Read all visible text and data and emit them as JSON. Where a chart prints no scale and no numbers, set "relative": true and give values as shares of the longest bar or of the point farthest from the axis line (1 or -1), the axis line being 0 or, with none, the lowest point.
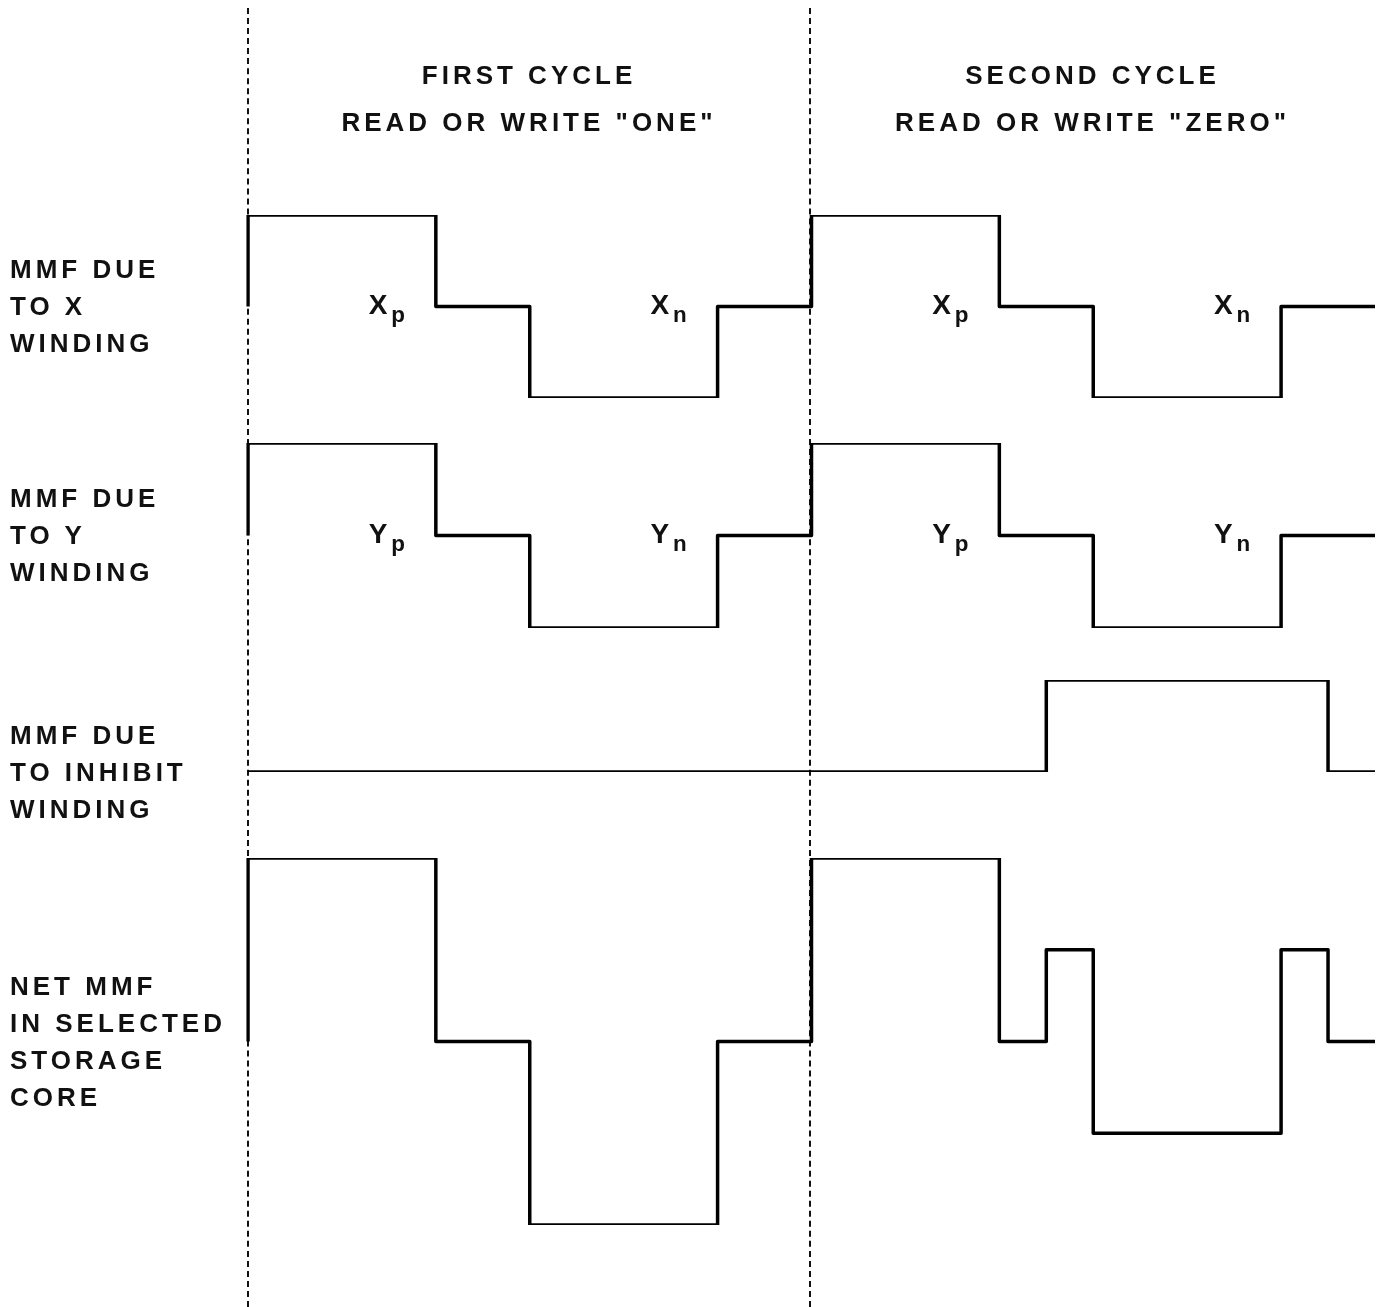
{
  "chart_data": [
    {
      "type": "step",
      "relative": true,
      "ylabel": "MMF DUE\nTO X\nWINDING",
      "categories": [
        null,
        null,
        null,
        null,
        null,
        null,
        null,
        null,
        null,
        null,
        null,
        null,
        null,
        null,
        null,
        null,
        null,
        null,
        null,
        null,
        null,
        null,
        null,
        null,
        null
      ],
      "tick_labels": false,
      "marker": "none",
      "series": [
        {
          "color": "#000000",
          "values": [
            0.5,
            1,
            1,
            1,
            1,
            0.5,
            0.5,
            0,
            0,
            0,
            0,
            0.5,
            0.5,
            1,
            1,
            1,
            1,
            0.5,
            0.5,
            0,
            0,
            0,
            0,
            0.5,
            0.5
          ]
        }
      ],
      "annotations": [
        "FIRST CYCLE\nREAD OR WRITE \"ONE\"",
        "SECOND CYCLE\nREAD OR WRITE \"ZERO\"",
        "X$_{p}$",
        "X$_{n}$",
        "X$_{p}$",
        "X$_{n}$"
      ]
    },
    {
      "type": "step",
      "relative": true,
      "ylabel": "MMF DUE\nTO Y\nWINDING",
      "categories": [
        null,
        null,
        null,
        null,
        null,
        null,
        null,
        null,
        null,
        null,
        null,
        null,
        null,
        null,
        null,
        null,
        null,
        null,
        null,
        null,
        null,
        null,
        null,
        null,
        null
      ],
      "tick_labels": false,
      "marker": "none",
      "series": [
        {
          "color": "#000000",
          "values": [
            0.5,
            1,
            1,
            1,
            1,
            0.5,
            0.5,
            0,
            0,
            0,
            0,
            0.5,
            0.5,
            1,
            1,
            1,
            1,
            0.5,
            0.5,
            0,
            0,
            0,
            0,
            0.5,
            0.5
          ]
        }
      ],
      "annotations": [
        "Y$_{p}$",
        "Y$_{n}$",
        "Y$_{p}$",
        "Y$_{n}$"
      ]
    },
    {
      "type": "step",
      "relative": true,
      "ylabel": "MMF DUE\nTO INHIBIT\nWINDING",
      "categories": [
        null,
        null,
        null,
        null,
        null,
        null,
        null,
        null,
        null,
        null,
        null,
        null,
        null,
        null,
        null,
        null,
        null,
        null,
        null,
        null,
        null,
        null,
        null,
        null,
        null
      ],
      "tick_labels": false,
      "marker": "none",
      "series": [
        {
          "color": "#000000",
          "values": [
            0,
            0,
            0,
            0,
            0,
            0,
            0,
            0,
            0,
            0,
            0,
            0,
            0,
            0,
            0,
            0,
            0,
            0,
            1,
            1,
            1,
            1,
            1,
            1,
            0
          ]
        }
      ]
    },
    {
      "type": "step",
      "relative": true,
      "ylabel": "NET MMF\nIN SELECTED\nSTORAGE\nCORE",
      "categories": [
        null,
        null,
        null,
        null,
        null,
        null,
        null,
        null,
        null,
        null,
        null,
        null,
        null,
        null,
        null,
        null,
        null,
        null,
        null,
        null,
        null,
        null,
        null,
        null,
        null
      ],
      "tick_labels": false,
      "marker": "none",
      "series": [
        {
          "color": "#000000",
          "values": [
            0.5,
            1,
            1,
            1,
            1,
            0.5,
            0.5,
            0,
            0,
            0,
            0,
            0.5,
            0.5,
            1,
            1,
            1,
            1,
            0.5,
            0.75,
            0.25,
            0.25,
            0.25,
            0.25,
            0.75,
            0.5
          ]
        }
      ]
    }
  ]
}
